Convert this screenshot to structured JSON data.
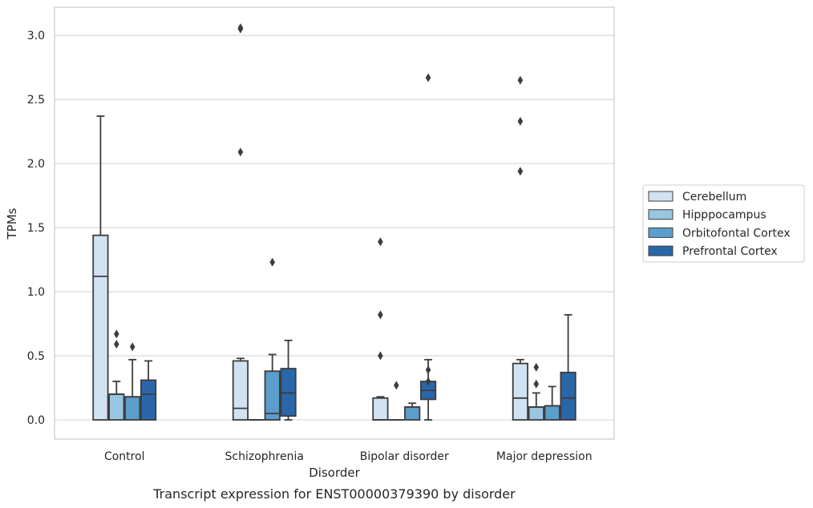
{
  "chart_data": {
    "type": "box",
    "xlabel": "Disorder",
    "ylabel": "TPMs",
    "caption": "Transcript expression for ENST00000379390 by disorder",
    "ylim": [
      -0.15,
      3.22
    ],
    "yticks": [
      0.0,
      0.5,
      1.0,
      1.5,
      2.0,
      2.5,
      3.0
    ],
    "ytick_labels": [
      "0.0",
      "0.5",
      "1.0",
      "1.5",
      "2.0",
      "2.5",
      "3.0"
    ],
    "grid": "horizontal",
    "legend_position": "right",
    "categories": [
      "Control",
      "Schizophrenia",
      "Bipolar disorder",
      "Major depression"
    ],
    "series": [
      {
        "name": "Cerebellum",
        "color": "#d1e2f2",
        "boxes": [
          {
            "whislo": 0.0,
            "q1": 0.0,
            "med": 1.12,
            "q3": 1.44,
            "whishi": 2.37,
            "fliers": []
          },
          {
            "whislo": 0.0,
            "q1": 0.0,
            "med": 0.09,
            "q3": 0.46,
            "whishi": 0.48,
            "fliers": [
              2.09,
              3.05,
              3.06
            ]
          },
          {
            "whislo": 0.0,
            "q1": 0.0,
            "med": 0.0,
            "q3": 0.17,
            "whishi": 0.18,
            "fliers": [
              0.5,
              0.82,
              1.39
            ]
          },
          {
            "whislo": 0.0,
            "q1": 0.0,
            "med": 0.17,
            "q3": 0.44,
            "whishi": 0.47,
            "fliers": [
              1.94,
              2.33,
              2.65
            ]
          }
        ]
      },
      {
        "name": "Hipppocampus",
        "color": "#9ac5e0",
        "boxes": [
          {
            "whislo": 0.0,
            "q1": 0.0,
            "med": 0.2,
            "q3": 0.2,
            "whishi": 0.3,
            "fliers": [
              0.59,
              0.67
            ]
          },
          {
            "whislo": 0.0,
            "q1": 0.0,
            "med": 0.0,
            "q3": 0.0,
            "whishi": 0.0,
            "fliers": []
          },
          {
            "whislo": 0.0,
            "q1": 0.0,
            "med": 0.0,
            "q3": 0.0,
            "whishi": 0.0,
            "fliers": [
              0.27
            ]
          },
          {
            "whislo": 0.0,
            "q1": 0.0,
            "med": 0.1,
            "q3": 0.1,
            "whishi": 0.21,
            "fliers": [
              0.28,
              0.41
            ]
          }
        ]
      },
      {
        "name": "Orbitofontal Cortex",
        "color": "#5b9dcb",
        "boxes": [
          {
            "whislo": 0.0,
            "q1": 0.0,
            "med": 0.18,
            "q3": 0.18,
            "whishi": 0.47,
            "fliers": [
              0.57
            ]
          },
          {
            "whislo": 0.0,
            "q1": 0.0,
            "med": 0.05,
            "q3": 0.38,
            "whishi": 0.51,
            "fliers": [
              1.23
            ]
          },
          {
            "whislo": 0.0,
            "q1": 0.0,
            "med": 0.1,
            "q3": 0.1,
            "whishi": 0.13,
            "fliers": []
          },
          {
            "whislo": 0.0,
            "q1": 0.0,
            "med": 0.11,
            "q3": 0.11,
            "whishi": 0.26,
            "fliers": []
          }
        ]
      },
      {
        "name": "Prefrontal Cortex",
        "color": "#2a67a9",
        "boxes": [
          {
            "whislo": 0.0,
            "q1": 0.0,
            "med": 0.2,
            "q3": 0.31,
            "whishi": 0.46,
            "fliers": []
          },
          {
            "whislo": 0.0,
            "q1": 0.03,
            "med": 0.21,
            "q3": 0.4,
            "whishi": 0.62,
            "fliers": []
          },
          {
            "whislo": 0.0,
            "q1": 0.16,
            "med": 0.23,
            "q3": 0.3,
            "whishi": 0.47,
            "fliers": [
              0.3,
              0.39,
              2.67
            ]
          },
          {
            "whislo": 0.0,
            "q1": 0.0,
            "med": 0.17,
            "q3": 0.37,
            "whishi": 0.82,
            "fliers": []
          }
        ]
      }
    ]
  }
}
